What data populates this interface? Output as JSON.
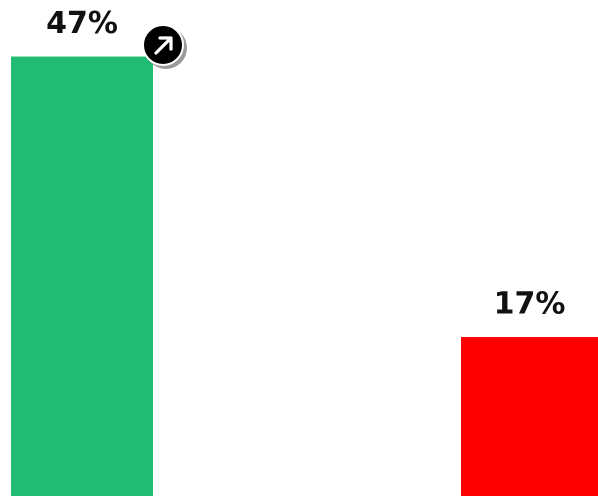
{
  "chart_data": {
    "type": "bar",
    "categories": [
      null,
      null
    ],
    "values": [
      47,
      17
    ],
    "value_labels": [
      "47%",
      "17%"
    ],
    "colors": [
      "#22bb73",
      "#ff0000"
    ]
  }
}
